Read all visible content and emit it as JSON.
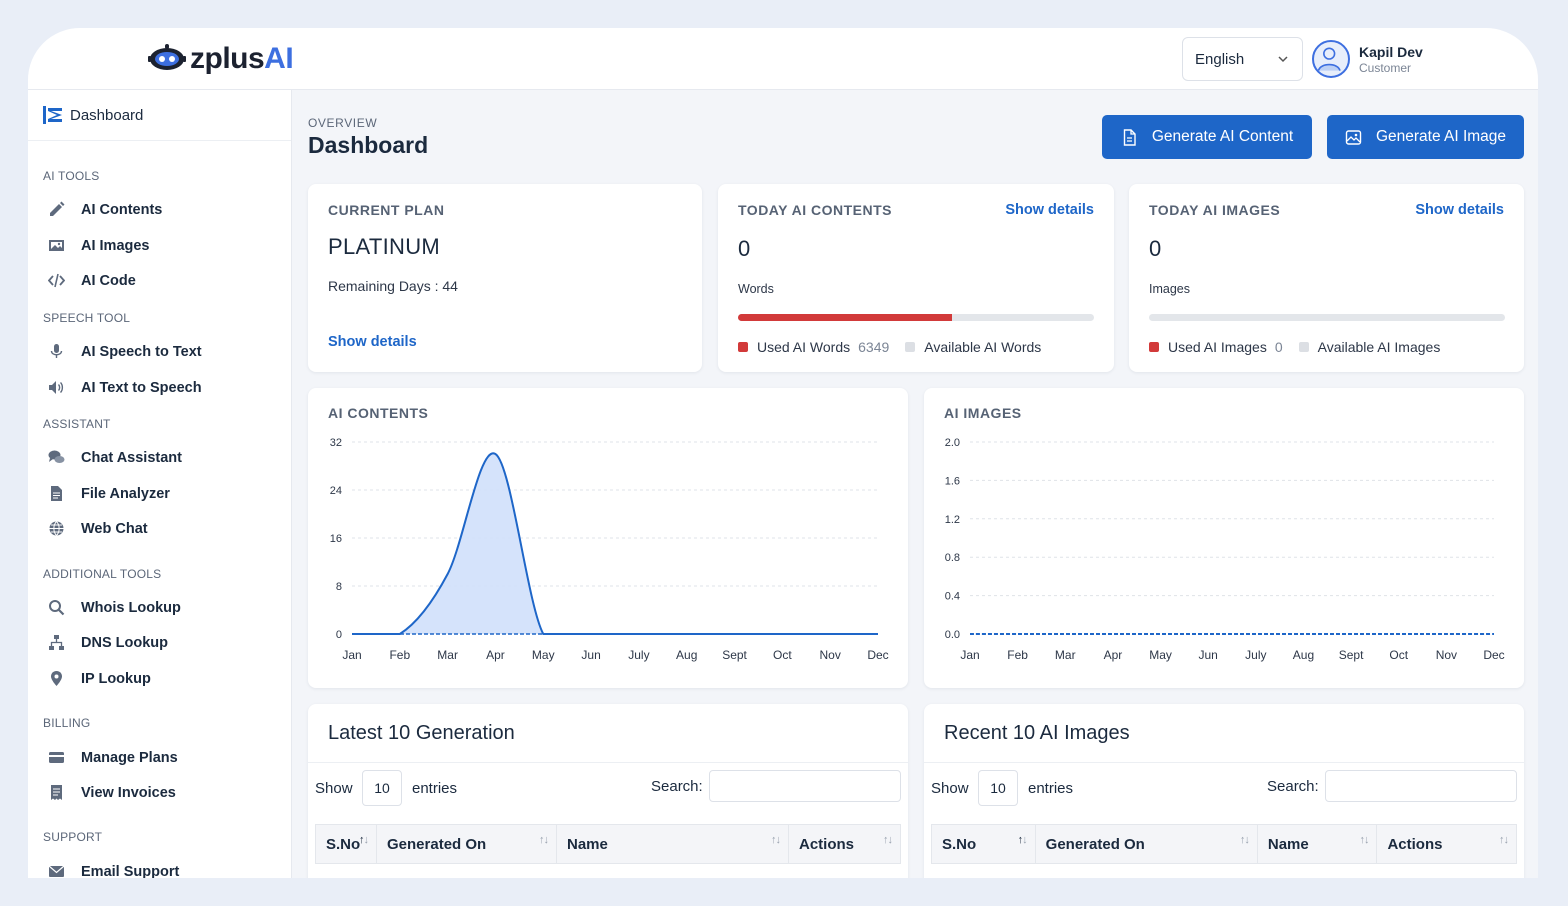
{
  "header": {
    "logo_text_main": "zplus",
    "logo_text_accent": "AI",
    "language": "English",
    "user_name": "Kapil Dev",
    "user_role": "Customer"
  },
  "sidebar": {
    "dashboard_label": "Dashboard",
    "sections": [
      {
        "title": "AI TOOLS",
        "items": [
          {
            "label": "AI Contents",
            "icon": "pencil-icon"
          },
          {
            "label": "AI Images",
            "icon": "image-icon"
          },
          {
            "label": "AI Code",
            "icon": "code-icon"
          }
        ]
      },
      {
        "title": "SPEECH TOOL",
        "items": [
          {
            "label": "AI Speech to Text",
            "icon": "microphone-icon"
          },
          {
            "label": "AI Text to Speech",
            "icon": "speaker-icon"
          }
        ]
      },
      {
        "title": "ASSISTANT",
        "items": [
          {
            "label": "Chat Assistant",
            "icon": "chat-icon"
          },
          {
            "label": "File Analyzer",
            "icon": "file-icon"
          },
          {
            "label": "Web Chat",
            "icon": "globe-icon"
          }
        ]
      },
      {
        "title": "ADDITIONAL TOOLS",
        "items": [
          {
            "label": "Whois Lookup",
            "icon": "search-icon"
          },
          {
            "label": "DNS Lookup",
            "icon": "network-icon"
          },
          {
            "label": "IP Lookup",
            "icon": "location-pin-icon"
          }
        ]
      },
      {
        "title": "BILLING",
        "items": [
          {
            "label": "Manage Plans",
            "icon": "credit-card-icon"
          },
          {
            "label": "View Invoices",
            "icon": "invoice-icon"
          }
        ]
      },
      {
        "title": "SUPPORT",
        "items": [
          {
            "label": "Email Support",
            "icon": "email-icon"
          }
        ]
      }
    ]
  },
  "page": {
    "overview_label": "OVERVIEW",
    "title": "Dashboard",
    "btn_generate_content": "Generate AI Content",
    "btn_generate_image": "Generate AI Image"
  },
  "cards": {
    "plan": {
      "label": "CURRENT PLAN",
      "plan_name": "PLATINUM",
      "remaining": "Remaining Days : 44",
      "show_details": "Show details"
    },
    "contents": {
      "label": "TODAY AI CONTENTS",
      "show_details": "Show details",
      "count": "0",
      "unit": "Words",
      "used_fraction": 0.6,
      "used_label": "Used AI Words",
      "used_value": "6349",
      "available_label": "Available AI Words"
    },
    "images": {
      "label": "TODAY AI IMAGES",
      "show_details": "Show details",
      "count": "0",
      "unit": "Images",
      "used_fraction": 0,
      "used_label": "Used AI Images",
      "used_value": "0",
      "available_label": "Available AI Images"
    }
  },
  "chart_data": [
    {
      "type": "area",
      "title": "AI CONTENTS",
      "categories": [
        "Jan",
        "Feb",
        "Mar",
        "Apr",
        "May",
        "Jun",
        "July",
        "Aug",
        "Sept",
        "Oct",
        "Nov",
        "Dec"
      ],
      "values": [
        0,
        0,
        10,
        30,
        0,
        0,
        0,
        0,
        0,
        0,
        0,
        0
      ],
      "yticks": [
        "0",
        "8",
        "16",
        "24",
        "32"
      ],
      "ylim": [
        0,
        32
      ],
      "grid": true,
      "color": "#1e66c8",
      "fill": "#d3e2fb"
    },
    {
      "type": "line",
      "title": "AI IMAGES",
      "categories": [
        "Jan",
        "Feb",
        "Mar",
        "Apr",
        "May",
        "Jun",
        "July",
        "Aug",
        "Sept",
        "Oct",
        "Nov",
        "Dec"
      ],
      "values": [
        0,
        0,
        0,
        0,
        0,
        0,
        0,
        0,
        0,
        0,
        0,
        0
      ],
      "yticks": [
        "0.0",
        "0.4",
        "0.8",
        "1.2",
        "1.6",
        "2.0"
      ],
      "ylim": [
        0,
        2
      ],
      "grid": true,
      "color": "#1e66c8"
    }
  ],
  "tables": {
    "generation": {
      "title": "Latest 10 Generation",
      "show": "Show",
      "entries_value": "10",
      "entries": "entries",
      "search": "Search:",
      "columns": [
        "S.No",
        "Generated On",
        "Name",
        "Actions"
      ]
    },
    "images": {
      "title": "Recent 10 AI Images",
      "show": "Show",
      "entries_value": "10",
      "entries": "entries",
      "search": "Search:",
      "columns": [
        "S.No",
        "Generated On",
        "Name",
        "Actions"
      ]
    }
  }
}
